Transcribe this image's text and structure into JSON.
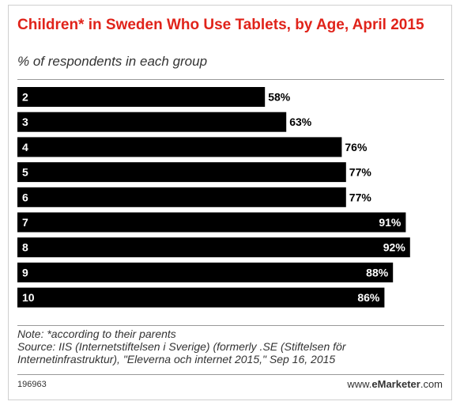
{
  "title": "Children* in Sweden Who Use Tablets, by Age, April 2015",
  "subtitle": "% of respondents in each group",
  "note": "Note: *according to their parents",
  "source": "Source: IIS (Internetstiftelsen i Sverige) (formerly .SE (Stiftelsen för Internetinfrastruktur), \"Eleverna och internet 2015,\" Sep 16, 2015",
  "chart_id": "196963",
  "brand": {
    "prefix": "www.",
    "name": "eMarketer",
    "suffix": ".com"
  },
  "colors": {
    "title": "#e0231a",
    "bar": "#000000",
    "bar_text": "#ffffff"
  },
  "chart_data": {
    "type": "bar",
    "orientation": "horizontal",
    "categories": [
      "2",
      "3",
      "4",
      "5",
      "6",
      "7",
      "8",
      "9",
      "10"
    ],
    "values": [
      58,
      63,
      76,
      77,
      77,
      91,
      92,
      88,
      86
    ],
    "value_labels": [
      "58%",
      "63%",
      "76%",
      "77%",
      "77%",
      "91%",
      "92%",
      "88%",
      "86%"
    ],
    "title": "Children* in Sweden Who Use Tablets, by Age, April 2015",
    "xlabel": "",
    "ylabel": "",
    "xlim": [
      0,
      100
    ],
    "grid": false,
    "legend": "none"
  }
}
